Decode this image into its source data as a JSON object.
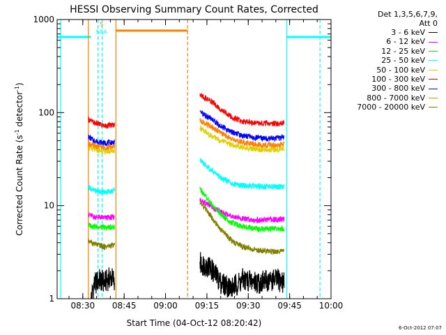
{
  "chart_data": {
    "type": "line",
    "title": "HESSI Observing Summary Count Rates, Corrected",
    "xlabel": "Start Time (04-Oct-12 08:20:42)",
    "ylabel_parts": [
      "Corrected Count Rate (s",
      "-1",
      " detector",
      "-1",
      ")"
    ],
    "yscale": "log",
    "ylim": [
      1,
      1000
    ],
    "xlim": [
      "08:20:42",
      "10:00:00"
    ],
    "x_ticks": [
      "08:30",
      "08:45",
      "09:00",
      "09:15",
      "09:30",
      "09:45",
      "10:00"
    ],
    "y_ticks": [
      "1",
      "10",
      "100",
      "1000"
    ],
    "legend_header": [
      "Det 1,3,5,6,7,9,",
      "Att 0"
    ],
    "legend_position": "right",
    "series": [
      {
        "name": "3 - 6 keV",
        "color": "#000000",
        "segments": [
          [
            [
              "08:33:00",
              1.0
            ],
            [
              "08:34:00",
              1.4
            ],
            [
              "08:36:00",
              1.6
            ],
            [
              "08:38:00",
              1.5
            ],
            [
              "08:40:00",
              1.7
            ],
            [
              "08:41:30",
              1.6
            ]
          ],
          [
            [
              "09:12:30",
              2.4
            ],
            [
              "09:16:00",
              2.2
            ],
            [
              "09:20:00",
              1.5
            ],
            [
              "09:24:00",
              1.3
            ],
            [
              "09:28:00",
              1.6
            ],
            [
              "09:34:00",
              1.5
            ],
            [
              "09:40:00",
              1.6
            ],
            [
              "09:43:00",
              1.5
            ]
          ]
        ]
      },
      {
        "name": "6 - 12 keV",
        "color": "#ff00ff",
        "segments": [
          [
            [
              "08:32:00",
              8.0
            ],
            [
              "08:34:00",
              7.6
            ],
            [
              "08:38:00",
              7.4
            ],
            [
              "08:41:30",
              7.5
            ]
          ],
          [
            [
              "09:12:30",
              11.5
            ],
            [
              "09:16:00",
              10.0
            ],
            [
              "09:20:00",
              8.5
            ],
            [
              "09:24:00",
              7.8
            ],
            [
              "09:28:00",
              7.2
            ],
            [
              "09:34:00",
              7.0
            ],
            [
              "09:40:00",
              7.1
            ],
            [
              "09:43:00",
              7.2
            ]
          ]
        ]
      },
      {
        "name": "12 - 25 keV",
        "color": "#00ff00",
        "segments": [
          [
            [
              "08:32:00",
              6.2
            ],
            [
              "08:34:00",
              6.0
            ],
            [
              "08:38:00",
              5.8
            ],
            [
              "08:41:30",
              5.9
            ]
          ],
          [
            [
              "09:12:30",
              15.0
            ],
            [
              "09:16:00",
              11.0
            ],
            [
              "09:20:00",
              8.0
            ],
            [
              "09:24:00",
              6.5
            ],
            [
              "09:28:00",
              6.0
            ],
            [
              "09:34:00",
              5.6
            ],
            [
              "09:40:00",
              5.7
            ],
            [
              "09:43:00",
              5.6
            ]
          ]
        ]
      },
      {
        "name": "25 - 50 keV",
        "color": "#00ffff",
        "segments": [
          [
            [
              "08:32:00",
              16.0
            ],
            [
              "08:34:00",
              14.5
            ],
            [
              "08:38:00",
              14.0
            ],
            [
              "08:41:30",
              14.5
            ]
          ],
          [
            [
              "09:12:30",
              30.0
            ],
            [
              "09:16:00",
              25.0
            ],
            [
              "09:20:00",
              20.0
            ],
            [
              "09:24:00",
              17.5
            ],
            [
              "09:28:00",
              16.5
            ],
            [
              "09:34:00",
              16.0
            ],
            [
              "09:40:00",
              16.0
            ],
            [
              "09:43:00",
              16.0
            ]
          ]
        ]
      },
      {
        "name": "50 - 100 keV",
        "color": "#e0d000",
        "segments": [
          [
            [
              "08:32:00",
              42.0
            ],
            [
              "08:34:00",
              40.0
            ],
            [
              "08:38:00",
              38.0
            ],
            [
              "08:41:30",
              39.0
            ]
          ],
          [
            [
              "09:12:30",
              68.0
            ],
            [
              "09:16:00",
              58.0
            ],
            [
              "09:20:00",
              50.0
            ],
            [
              "09:24:00",
              45.0
            ],
            [
              "09:28:00",
              42.0
            ],
            [
              "09:34:00",
              40.0
            ],
            [
              "09:40:00",
              40.0
            ],
            [
              "09:43:00",
              41.0
            ]
          ]
        ]
      },
      {
        "name": "100 - 300 keV",
        "color": "#ff0000",
        "segments": [
          [
            [
              "08:32:00",
              85.0
            ],
            [
              "08:34:00",
              78.0
            ],
            [
              "08:38:00",
              72.0
            ],
            [
              "08:41:30",
              74.0
            ]
          ],
          [
            [
              "09:12:30",
              155.0
            ],
            [
              "09:16:00",
              135.0
            ],
            [
              "09:20:00",
              110.0
            ],
            [
              "09:24:00",
              90.0
            ],
            [
              "09:28:00",
              80.0
            ],
            [
              "09:34:00",
              76.0
            ],
            [
              "09:40:00",
              76.0
            ],
            [
              "09:43:00",
              78.0
            ]
          ]
        ]
      },
      {
        "name": "300 - 800 keV",
        "color": "#0000ff",
        "segments": [
          [
            [
              "08:32:00",
              55.0
            ],
            [
              "08:34:00",
              50.0
            ],
            [
              "08:38:00",
              47.0
            ],
            [
              "08:41:30",
              48.0
            ]
          ],
          [
            [
              "09:12:30",
              100.0
            ],
            [
              "09:16:00",
              88.0
            ],
            [
              "09:20:00",
              72.0
            ],
            [
              "09:24:00",
              62.0
            ],
            [
              "09:28:00",
              56.0
            ],
            [
              "09:34:00",
              53.0
            ],
            [
              "09:40:00",
              53.0
            ],
            [
              "09:43:00",
              54.0
            ]
          ]
        ]
      },
      {
        "name": "800 - 7000 keV",
        "color": "#ff7f00",
        "segments": [
          [
            [
              "08:32:00",
              47.0
            ],
            [
              "08:34:00",
              44.0
            ],
            [
              "08:38:00",
              42.0
            ],
            [
              "08:41:30",
              43.0
            ]
          ],
          [
            [
              "09:12:30",
              82.0
            ],
            [
              "09:16:00",
              72.0
            ],
            [
              "09:20:00",
              60.0
            ],
            [
              "09:24:00",
              52.0
            ],
            [
              "09:28:00",
              48.0
            ],
            [
              "09:34:00",
              45.0
            ],
            [
              "09:40:00",
              45.0
            ],
            [
              "09:43:00",
              46.0
            ]
          ]
        ]
      },
      {
        "name": "7000 - 20000 keV",
        "color": "#808000",
        "segments": [
          [
            [
              "08:32:00",
              4.2
            ],
            [
              "08:34:00",
              3.9
            ],
            [
              "08:38:00",
              3.6
            ],
            [
              "08:41:30",
              3.8
            ]
          ],
          [
            [
              "09:12:30",
              11.0
            ],
            [
              "09:16:00",
              8.0
            ],
            [
              "09:20:00",
              5.5
            ],
            [
              "09:24:00",
              4.2
            ],
            [
              "09:28:00",
              3.6
            ],
            [
              "09:34:00",
              3.3
            ],
            [
              "09:40:00",
              3.2
            ],
            [
              "09:43:00",
              3.3
            ]
          ]
        ]
      }
    ],
    "vertical_lines": [
      {
        "x": "08:22:00",
        "color": "#00ffff",
        "style": "solid"
      },
      {
        "x": "08:32:00",
        "color": "#ff7f00",
        "style": "solid"
      },
      {
        "x": "08:35:30",
        "color": "#00ffff",
        "style": "dashed"
      },
      {
        "x": "08:37:00",
        "color": "#00ffff",
        "style": "dashed"
      },
      {
        "x": "08:42:00",
        "color": "#ff7f00",
        "style": "solid"
      },
      {
        "x": "09:08:00",
        "color": "#ff7f00",
        "style": "dashed"
      },
      {
        "x": "09:44:00",
        "color": "#00ffff",
        "style": "solid"
      },
      {
        "x": "09:56:00",
        "color": "#00ffff",
        "style": "dashed"
      }
    ],
    "horizontal_bars": [
      {
        "x0": "08:20:42",
        "x1": "08:33:00",
        "y": 650,
        "color": "#00ffff"
      },
      {
        "x0": "08:42:00",
        "x1": "09:08:00",
        "y": 760,
        "color": "#ff7f00"
      },
      {
        "x0": "09:44:00",
        "x1": "10:00:00",
        "y": 650,
        "color": "#00ffff"
      }
    ],
    "markers": [
      {
        "x": "08:36:45",
        "text": "S",
        "color": "#ff7f00",
        "y": 850
      },
      {
        "x": "08:36:45",
        "text": "SAA",
        "color": "#00ffff",
        "y": 700
      }
    ]
  },
  "footer_stamp": "6-Oct-2012 07:07"
}
